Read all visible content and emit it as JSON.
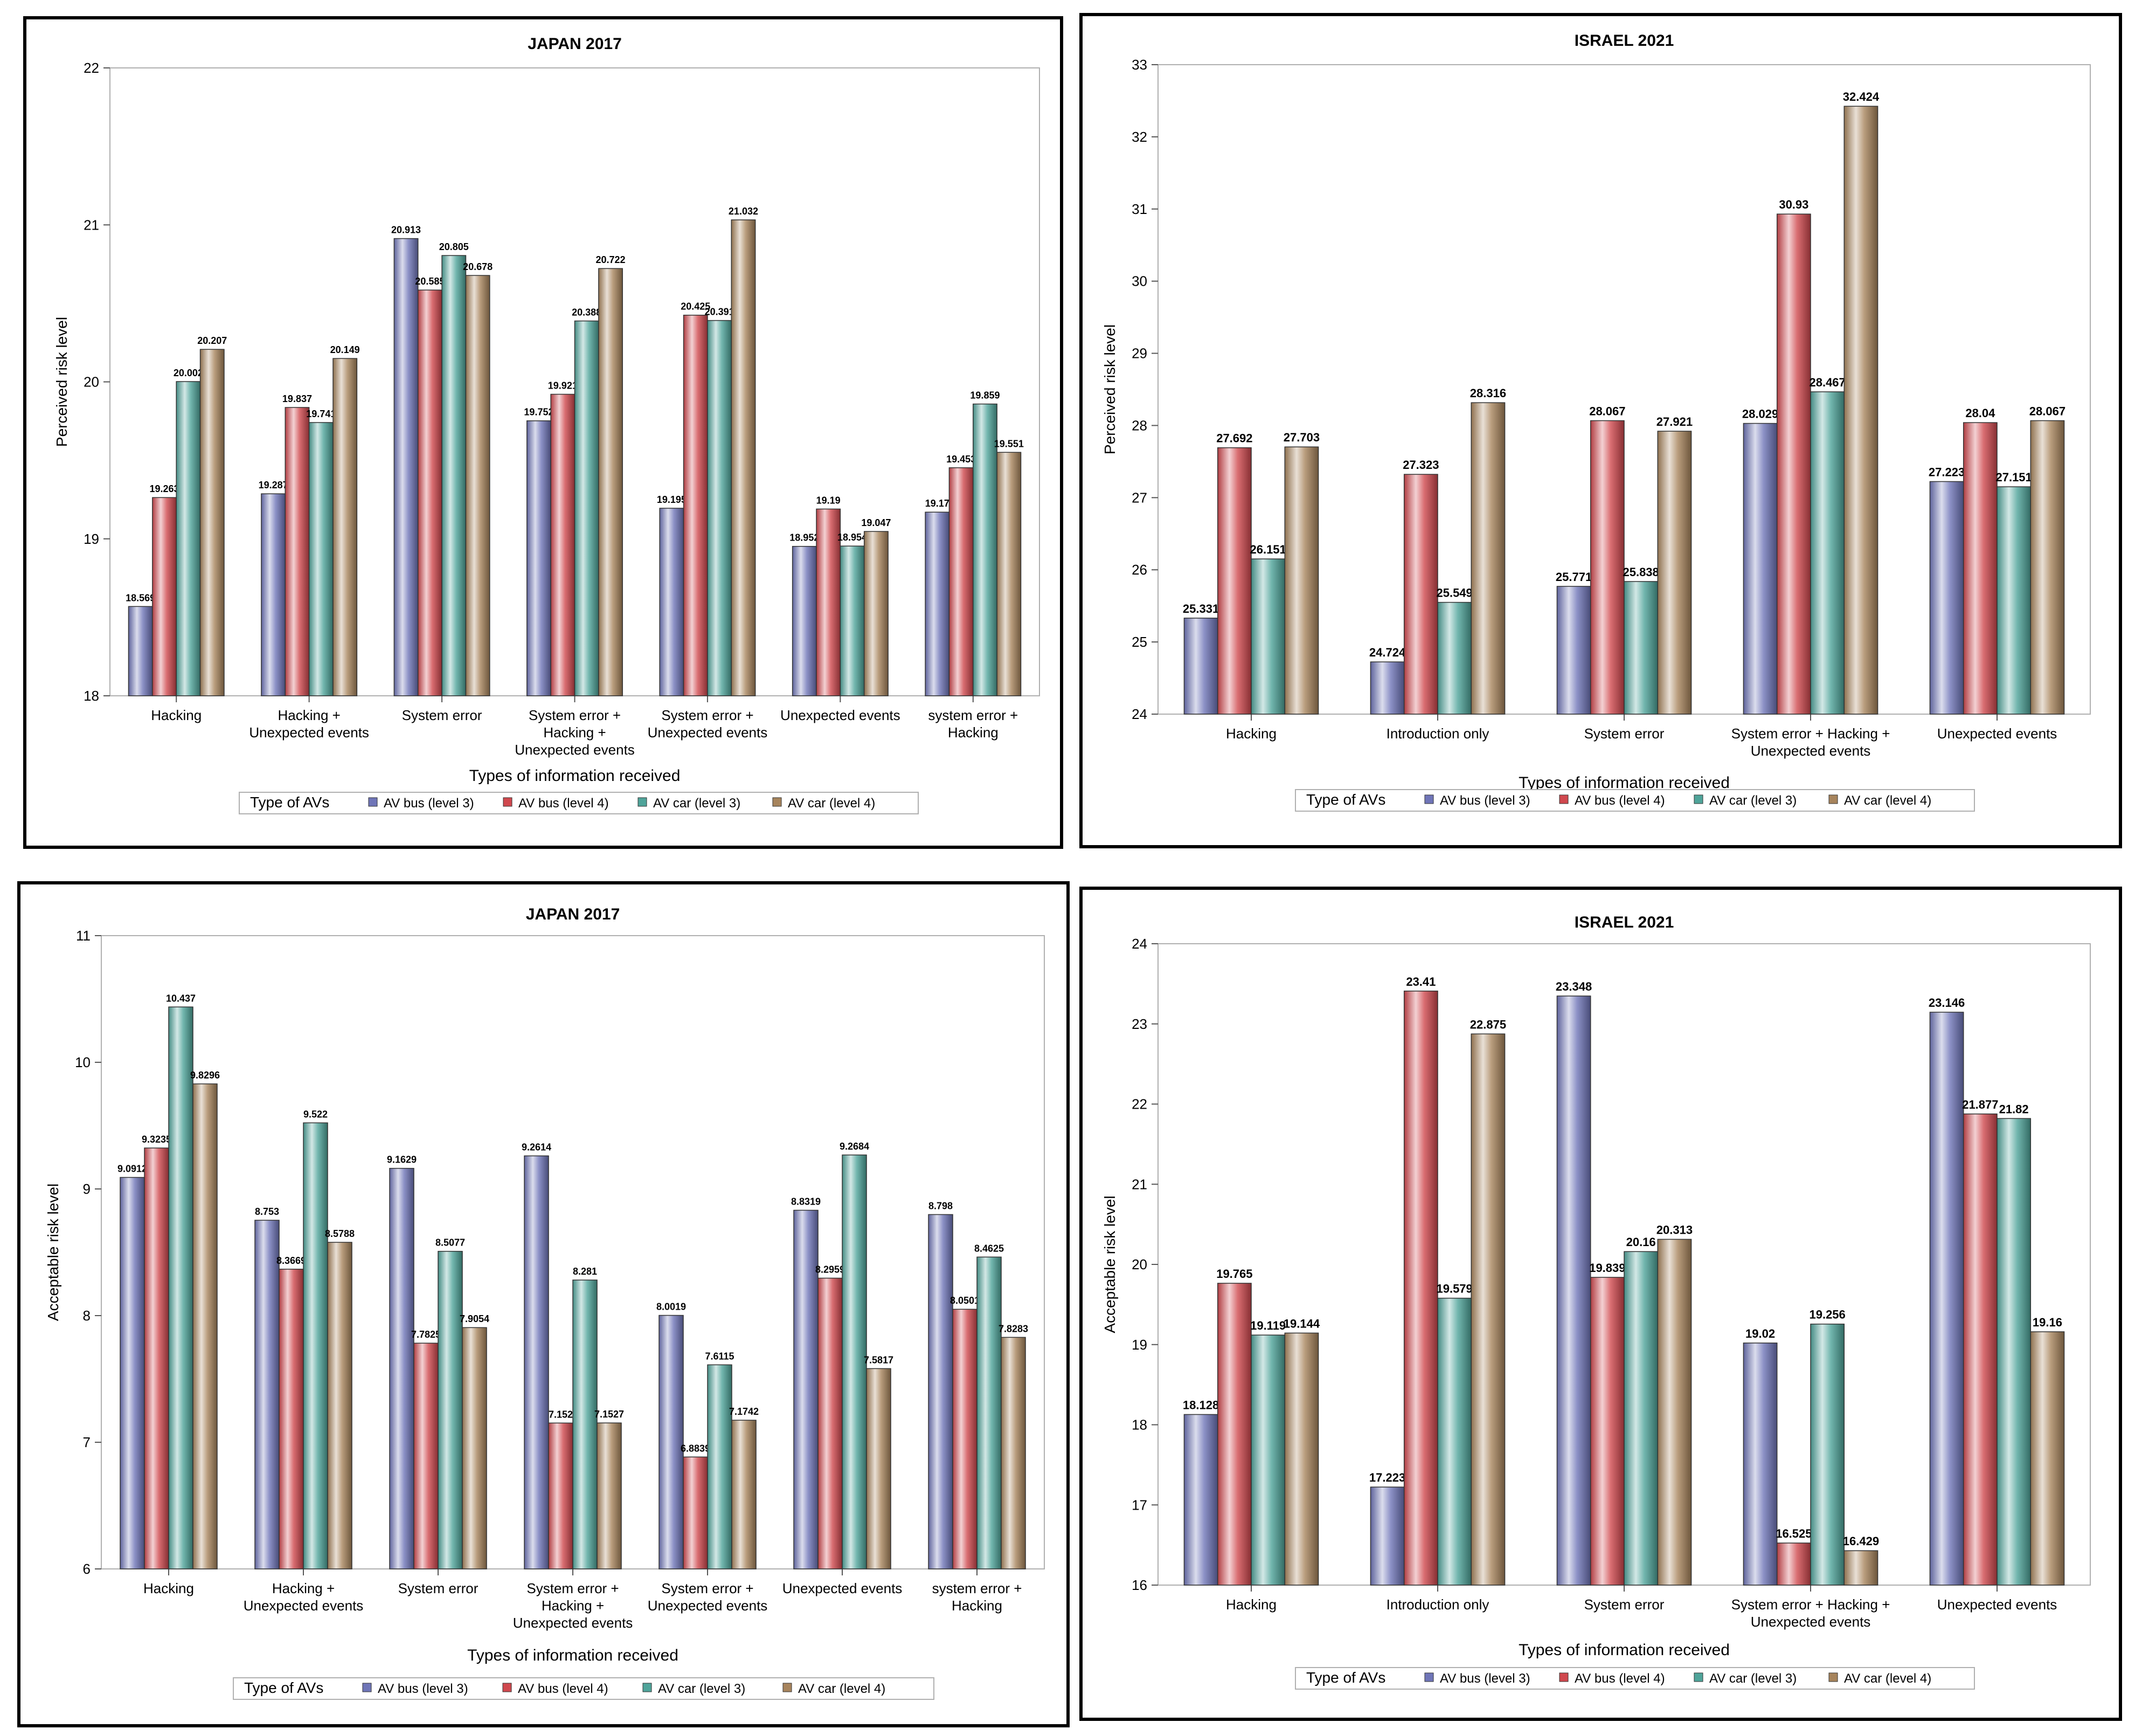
{
  "chart_data": [
    {
      "type": "bar",
      "title": "JAPAN 2017",
      "xlabel": "Types of information received",
      "ylabel": "Perceived risk level",
      "ylim": [
        18,
        22
      ],
      "yticks": [
        "18",
        "19",
        "20",
        "21",
        "22"
      ],
      "categories": [
        "Hacking",
        "Hacking + Unexpected events",
        "System error",
        "System error + Hacking + Unexpected events",
        "System error + Unexpected events",
        "Unexpected events",
        "system error + Hacking"
      ],
      "category_lines": [
        [
          "Hacking"
        ],
        [
          "Hacking +",
          "Unexpected events"
        ],
        [
          "System error"
        ],
        [
          "System error +",
          "Hacking +",
          "Unexpected events"
        ],
        [
          "System error +",
          "Unexpected events"
        ],
        [
          "Unexpected events"
        ],
        [
          "system error +",
          "Hacking"
        ]
      ],
      "series": [
        {
          "name": "AV bus (level 3)",
          "values": [
            18.569,
            19.287,
            20.913,
            19.752,
            19.195,
            18.952,
            19.17
          ],
          "labels": [
            "18.569",
            "19.287",
            "20.913",
            "19.752",
            "19.195",
            "18.952",
            "19.17"
          ]
        },
        {
          "name": "AV bus (level 4)",
          "values": [
            19.263,
            19.837,
            20.585,
            19.921,
            20.425,
            19.19,
            19.453
          ],
          "labels": [
            "19.263",
            "19.837",
            "20.585",
            "19.921",
            "20.425",
            "19.19",
            "19.453"
          ]
        },
        {
          "name": "AV car (level 3)",
          "values": [
            20.002,
            19.741,
            20.805,
            20.388,
            20.391,
            18.954,
            19.859
          ],
          "labels": [
            "20.002",
            "19.741",
            "20.805",
            "20.388",
            "20.391",
            "18.954",
            "19.859"
          ]
        },
        {
          "name": "AV car (level 4)",
          "values": [
            20.207,
            20.149,
            20.678,
            20.722,
            21.032,
            19.047,
            19.551
          ],
          "labels": [
            "20.207",
            "20.149",
            "20.678",
            "20.722",
            "21.032",
            "19.047",
            "19.551"
          ]
        }
      ],
      "legend_title": "Type of AVs",
      "legend_position": "bottom"
    },
    {
      "type": "bar",
      "title": "ISRAEL 2021",
      "xlabel": "Types of information received",
      "ylabel": "Perceived risk level",
      "ylim": [
        24,
        33
      ],
      "yticks": [
        "24",
        "25",
        "26",
        "27",
        "28",
        "29",
        "30",
        "31",
        "32",
        "33"
      ],
      "categories": [
        "Hacking",
        "Introduction only",
        "System error",
        "System error + Hacking + Unexpected events",
        "Unexpected events"
      ],
      "category_lines": [
        [
          "Hacking"
        ],
        [
          "Introduction only"
        ],
        [
          "System error"
        ],
        [
          "System error + Hacking +",
          "Unexpected events"
        ],
        [
          "Unexpected events"
        ]
      ],
      "series": [
        {
          "name": "AV bus (level 3)",
          "values": [
            25.331,
            24.724,
            25.771,
            28.029,
            27.223
          ],
          "labels": [
            "25.331",
            "24.724",
            "25.771",
            "28.029",
            "27.223"
          ]
        },
        {
          "name": "AV bus (level 4)",
          "values": [
            27.692,
            27.323,
            28.067,
            30.93,
            28.04
          ],
          "labels": [
            "27.692",
            "27.323",
            "28.067",
            "30.93",
            "28.04"
          ]
        },
        {
          "name": "AV car (level 3)",
          "values": [
            26.151,
            25.549,
            25.838,
            28.467,
            27.151
          ],
          "labels": [
            "26.151",
            "25.549",
            "25.838",
            "28.467",
            "27.151"
          ]
        },
        {
          "name": "AV car (level 4)",
          "values": [
            27.703,
            28.316,
            27.921,
            32.424,
            28.067
          ],
          "labels": [
            "27.703",
            "28.316",
            "27.921",
            "32.424",
            "28.067"
          ]
        }
      ],
      "legend_title": "Type of AVs",
      "legend_position": "bottom"
    },
    {
      "type": "bar",
      "title": "JAPAN 2017",
      "xlabel": "Types of information received",
      "ylabel": "Acceptable risk level",
      "ylim": [
        6,
        11
      ],
      "yticks": [
        "6",
        "7",
        "8",
        "9",
        "10",
        "11"
      ],
      "categories": [
        "Hacking",
        "Hacking + Unexpected events",
        "System error",
        "System error + Hacking + Unexpected events",
        "System error + Unexpected events",
        "Unexpected events",
        "system error + Hacking"
      ],
      "category_lines": [
        [
          "Hacking"
        ],
        [
          "Hacking +",
          "Unexpected events"
        ],
        [
          "System error"
        ],
        [
          "System error +",
          "Hacking +",
          "Unexpected events"
        ],
        [
          "System error +",
          "Unexpected events"
        ],
        [
          "Unexpected events"
        ],
        [
          "system error +",
          "Hacking"
        ]
      ],
      "series": [
        {
          "name": "AV bus (level 3)",
          "values": [
            9.0912,
            8.753,
            9.1629,
            9.2614,
            8.0019,
            8.8319,
            8.798
          ],
          "labels": [
            "9.0912",
            "8.753",
            "9.1629",
            "9.2614",
            "8.0019",
            "8.8319",
            "8.798"
          ]
        },
        {
          "name": "AV bus (level 4)",
          "values": [
            9.3235,
            8.3669,
            7.7825,
            7.152,
            6.8839,
            8.2959,
            8.0501
          ],
          "labels": [
            "9.3235",
            "8.3669",
            "7.7825",
            "7.152",
            "6.8839",
            "8.2959",
            "8.0501"
          ]
        },
        {
          "name": "AV car (level 3)",
          "values": [
            10.437,
            9.522,
            8.5077,
            8.281,
            7.6115,
            9.2684,
            8.4625
          ],
          "labels": [
            "10.437",
            "9.522",
            "8.5077",
            "8.281",
            "7.6115",
            "9.2684",
            "8.4625"
          ]
        },
        {
          "name": "AV car (level 4)",
          "values": [
            9.8296,
            8.5788,
            7.9054,
            7.1527,
            7.1742,
            7.5817,
            7.8283
          ],
          "labels": [
            "9.8296",
            "8.5788",
            "7.9054",
            "7.1527",
            "7.1742",
            "7.5817",
            "7.8283"
          ]
        }
      ],
      "legend_title": "Type of AVs",
      "legend_position": "bottom"
    },
    {
      "type": "bar",
      "title": "ISRAEL 2021",
      "xlabel": "Types of information received",
      "ylabel": "Acceptable risk level",
      "ylim": [
        16,
        24
      ],
      "yticks": [
        "16",
        "17",
        "18",
        "19",
        "20",
        "21",
        "22",
        "23",
        "24"
      ],
      "categories": [
        "Hacking",
        "Introduction only",
        "System error",
        "System error + Hacking + Unexpected events",
        "Unexpected events"
      ],
      "category_lines": [
        [
          "Hacking"
        ],
        [
          "Introduction only"
        ],
        [
          "System error"
        ],
        [
          "System error + Hacking +",
          "Unexpected events"
        ],
        [
          "Unexpected events"
        ]
      ],
      "series": [
        {
          "name": "AV bus (level 3)",
          "values": [
            18.128,
            17.223,
            23.348,
            19.02,
            23.146
          ],
          "labels": [
            "18.128",
            "17.223",
            "23.348",
            "19.02",
            "23.146"
          ]
        },
        {
          "name": "AV bus (level 4)",
          "values": [
            19.765,
            23.41,
            19.839,
            16.525,
            21.877
          ],
          "labels": [
            "19.765",
            "23.41",
            "19.839",
            "16.525",
            "21.877"
          ]
        },
        {
          "name": "AV car (level 3)",
          "values": [
            19.119,
            19.579,
            20.16,
            19.256,
            21.82
          ],
          "labels": [
            "19.119",
            "19.579",
            "20.16",
            "19.256",
            "21.82"
          ]
        },
        {
          "name": "AV car (level 4)",
          "values": [
            19.144,
            22.875,
            20.313,
            16.429,
            19.16
          ],
          "labels": [
            "19.144",
            "22.875",
            "20.313",
            "16.429",
            "19.16"
          ]
        }
      ],
      "legend_title": "Type of AVs",
      "legend_position": "bottom"
    }
  ],
  "colors": {
    "AV bus (level 3)": "#6f75b8",
    "AV bus (level 4)": "#d0484e",
    "AV car (level 3)": "#4fa49a",
    "AV car (level 4)": "#a7845c"
  }
}
